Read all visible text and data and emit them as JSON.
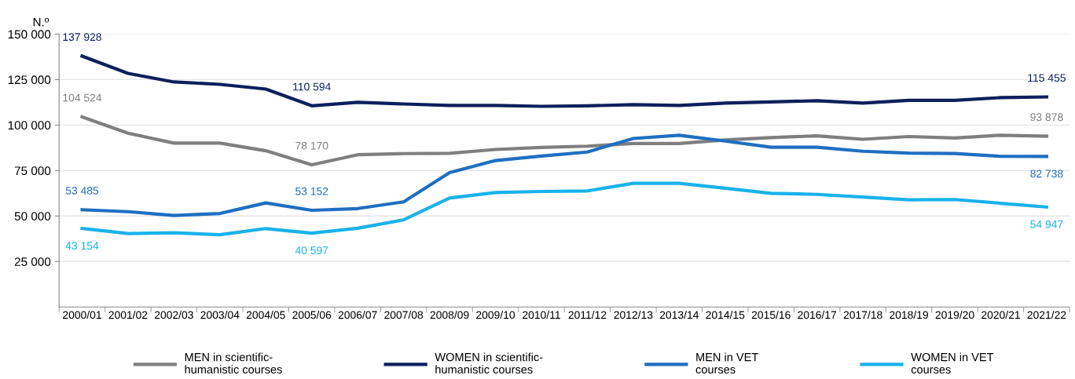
{
  "chart_data": {
    "type": "line",
    "ylabel": "N.º",
    "categories": [
      "2000/01",
      "2001/02",
      "2002/03",
      "2003/04",
      "2004/05",
      "2005/06",
      "2006/07",
      "2007/08",
      "2008/09",
      "2009/10",
      "2010/11",
      "2011/12",
      "2012/13",
      "2013/14",
      "2014/15",
      "2015/16",
      "2016/17",
      "2017/18",
      "2018/19",
      "2019/20",
      "2020/21",
      "2021/22"
    ],
    "series": [
      {
        "name": "MEN in scientific-\nhumanistic courses",
        "color": "#7f7f7f",
        "values": [
          104524,
          95500,
          90100,
          90100,
          85900,
          78170,
          83700,
          84300,
          84500,
          86600,
          87700,
          88400,
          89900,
          89900,
          91800,
          93100,
          94100,
          92200,
          93700,
          92900,
          94400,
          93878
        ],
        "value_labels": [
          "104 524",
          null,
          null,
          null,
          null,
          "78 170",
          null,
          null,
          null,
          null,
          null,
          null,
          null,
          null,
          null,
          null,
          null,
          null,
          null,
          null,
          null,
          "93 878"
        ]
      },
      {
        "name": "WOMEN in scientific-\nhumanistic courses",
        "color": "#0d1f5c",
        "values": [
          137928,
          128400,
          123700,
          122400,
          119800,
          110594,
          112500,
          111600,
          110800,
          110800,
          110300,
          110600,
          111200,
          110800,
          112100,
          112700,
          113400,
          112100,
          113600,
          113600,
          115100,
          115455
        ],
        "value_labels": [
          "137 928",
          null,
          null,
          null,
          null,
          "110 594",
          null,
          null,
          null,
          null,
          null,
          null,
          null,
          null,
          null,
          null,
          null,
          null,
          null,
          null,
          null,
          "115 455"
        ]
      },
      {
        "name": "MEN in VET\ncourses",
        "color": "#1f6fc1",
        "values": [
          53485,
          52400,
          50300,
          51400,
          57200,
          53152,
          54100,
          57800,
          73900,
          80500,
          83000,
          85200,
          92600,
          94400,
          91200,
          87800,
          87800,
          85600,
          84600,
          84400,
          82800,
          82738
        ],
        "value_labels": [
          "53 485",
          null,
          null,
          null,
          null,
          "53 152",
          null,
          null,
          null,
          null,
          null,
          null,
          null,
          null,
          null,
          null,
          null,
          null,
          null,
          null,
          null,
          "82 738"
        ]
      },
      {
        "name": "WOMEN in VET\ncourses",
        "color": "#1ab2ea",
        "values": [
          43154,
          40400,
          40800,
          39700,
          43100,
          40597,
          43300,
          47900,
          59900,
          62900,
          63500,
          63800,
          68000,
          68000,
          65300,
          62500,
          61900,
          60400,
          58900,
          59100,
          57000,
          54947
        ],
        "value_labels": [
          "43 154",
          null,
          null,
          null,
          null,
          "40 597",
          null,
          null,
          null,
          null,
          null,
          null,
          null,
          null,
          null,
          null,
          null,
          null,
          null,
          null,
          null,
          "54 947"
        ]
      }
    ],
    "ylim": [
      0,
      150000
    ],
    "yticks": [
      {
        "value": 25000,
        "label": "25 000"
      },
      {
        "value": 50000,
        "label": "50 000"
      },
      {
        "value": 75000,
        "label": "75 000"
      },
      {
        "value": 100000,
        "label": "100 000"
      },
      {
        "value": 125000,
        "label": "125 000"
      },
      {
        "value": 150000,
        "label": "150 000"
      }
    ],
    "grid": "y",
    "legend": "bottom",
    "marker": "none",
    "line_style": "solid"
  }
}
